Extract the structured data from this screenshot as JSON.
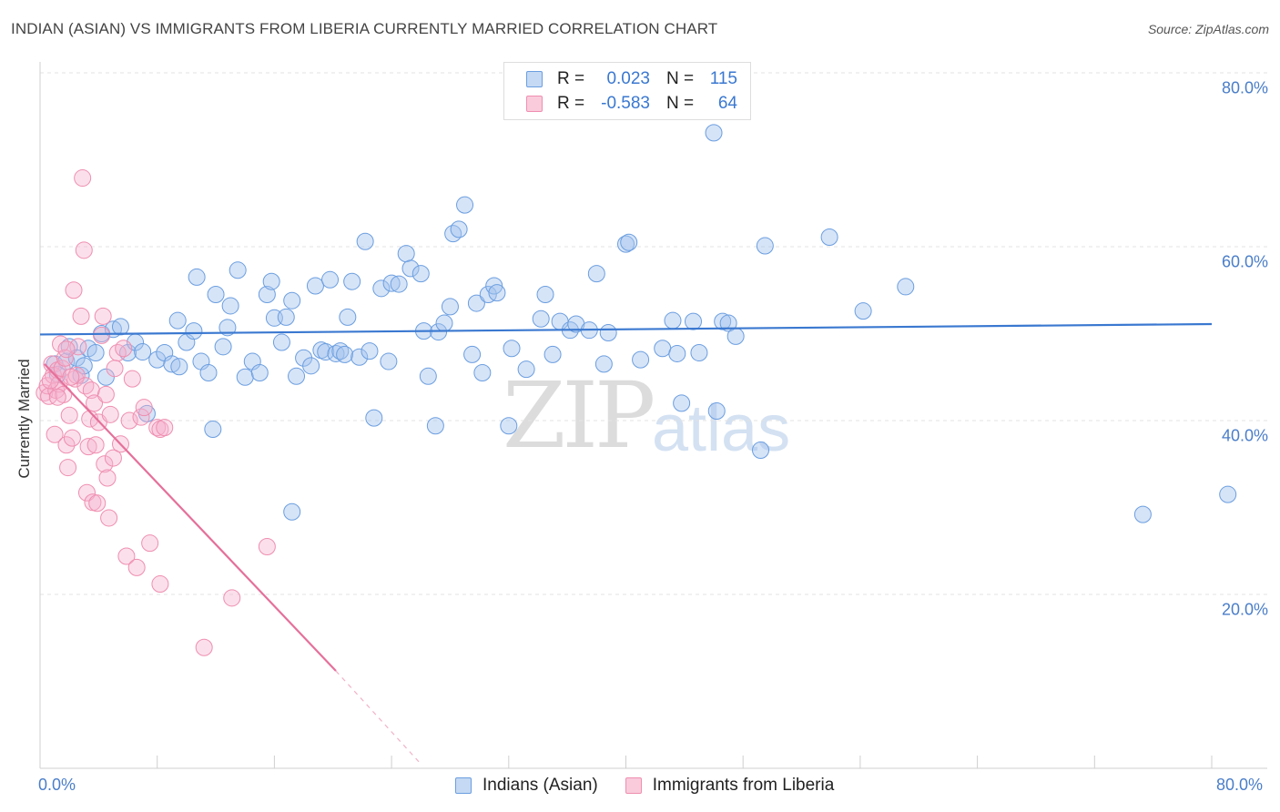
{
  "title": "INDIAN (ASIAN) VS IMMIGRANTS FROM LIBERIA CURRENTLY MARRIED CORRELATION CHART",
  "source": "Source: ZipAtlas.com",
  "watermark": {
    "zip": "ZIP",
    "atlas": "atlas"
  },
  "legend": {
    "r_label": "R =",
    "n_label": "N =",
    "rows": [
      {
        "r": "0.023",
        "n": "115"
      },
      {
        "r": "-0.583",
        "n": "64"
      }
    ]
  },
  "bottom_legend": [
    "Indians (Asian)",
    "Immigrants from Liberia"
  ],
  "chart_data": {
    "type": "scatter",
    "title": "INDIAN (ASIAN) VS IMMIGRANTS FROM LIBERIA CURRENTLY MARRIED CORRELATION CHART",
    "xlabel": "",
    "ylabel": "Currently Married",
    "xlim": [
      0,
      80
    ],
    "ylim": [
      0,
      80
    ],
    "x_tick_labels": [
      "0.0%",
      "80.0%"
    ],
    "y_tick_labels": [
      "80.0%",
      "60.0%",
      "40.0%",
      "20.0%"
    ],
    "y_ticks": [
      80,
      60,
      40,
      20
    ],
    "grid": true,
    "colors": {
      "blue": "#6b9ee0",
      "pink": "#ef8eb0",
      "blue_line": "#3a78d0",
      "pink_line": "#e5709a"
    },
    "series": [
      {
        "name": "Indians (Asian)",
        "color": "#6b9ee0",
        "trend": {
          "x": [
            0,
            80
          ],
          "y": [
            49.9,
            51.1
          ]
        },
        "points": [
          [
            1.0,
            46.5
          ],
          [
            1.2,
            45.3
          ],
          [
            1.8,
            46.8
          ],
          [
            2.0,
            48.5
          ],
          [
            2.5,
            47.2
          ],
          [
            2.8,
            45.2
          ],
          [
            3.0,
            46.3
          ],
          [
            3.3,
            48.3
          ],
          [
            3.8,
            47.8
          ],
          [
            4.2,
            50.0
          ],
          [
            4.5,
            45.0
          ],
          [
            5.0,
            50.5
          ],
          [
            5.5,
            50.8
          ],
          [
            6.0,
            47.8
          ],
          [
            6.5,
            49.0
          ],
          [
            7.0,
            47.9
          ],
          [
            7.3,
            40.8
          ],
          [
            8.0,
            47.0
          ],
          [
            8.5,
            47.8
          ],
          [
            9.0,
            46.5
          ],
          [
            9.5,
            46.2
          ],
          [
            9.4,
            51.5
          ],
          [
            10.0,
            49.0
          ],
          [
            10.5,
            50.3
          ],
          [
            10.7,
            56.5
          ],
          [
            11.0,
            46.8
          ],
          [
            11.5,
            45.5
          ],
          [
            12.0,
            54.5
          ],
          [
            12.5,
            48.5
          ],
          [
            12.8,
            50.7
          ],
          [
            13.0,
            53.2
          ],
          [
            13.5,
            57.3
          ],
          [
            14.0,
            45.0
          ],
          [
            14.5,
            46.8
          ],
          [
            15.0,
            45.5
          ],
          [
            15.5,
            54.5
          ],
          [
            15.8,
            56.0
          ],
          [
            16.0,
            51.8
          ],
          [
            16.5,
            49.0
          ],
          [
            16.8,
            51.9
          ],
          [
            17.2,
            53.8
          ],
          [
            17.5,
            45.1
          ],
          [
            18.0,
            47.2
          ],
          [
            18.5,
            46.3
          ],
          [
            18.8,
            55.5
          ],
          [
            19.2,
            48.1
          ],
          [
            19.5,
            47.9
          ],
          [
            19.8,
            56.2
          ],
          [
            20.2,
            47.7
          ],
          [
            20.5,
            48.0
          ],
          [
            20.8,
            47.6
          ],
          [
            21.0,
            51.9
          ],
          [
            21.3,
            56.0
          ],
          [
            21.8,
            47.3
          ],
          [
            22.2,
            60.6
          ],
          [
            22.5,
            48.0
          ],
          [
            22.8,
            40.3
          ],
          [
            23.3,
            55.2
          ],
          [
            23.8,
            46.8
          ],
          [
            24.0,
            55.8
          ],
          [
            24.5,
            55.7
          ],
          [
            25.0,
            59.2
          ],
          [
            25.3,
            57.5
          ],
          [
            26.0,
            56.9
          ],
          [
            26.2,
            50.3
          ],
          [
            26.5,
            45.1
          ],
          [
            27.0,
            39.4
          ],
          [
            27.2,
            50.2
          ],
          [
            27.6,
            51.2
          ],
          [
            28.0,
            53.1
          ],
          [
            28.2,
            61.5
          ],
          [
            28.6,
            62.0
          ],
          [
            29.0,
            64.8
          ],
          [
            29.5,
            47.6
          ],
          [
            29.8,
            53.5
          ],
          [
            30.2,
            45.5
          ],
          [
            30.6,
            54.5
          ],
          [
            31.0,
            55.5
          ],
          [
            31.2,
            54.7
          ],
          [
            32.0,
            39.4
          ],
          [
            32.2,
            48.3
          ],
          [
            33.2,
            45.9
          ],
          [
            34.2,
            51.7
          ],
          [
            34.5,
            54.5
          ],
          [
            35.0,
            47.6
          ],
          [
            35.5,
            51.4
          ],
          [
            36.2,
            50.4
          ],
          [
            36.6,
            51.1
          ],
          [
            37.5,
            50.4
          ],
          [
            38.0,
            56.9
          ],
          [
            38.5,
            46.5
          ],
          [
            38.8,
            50.1
          ],
          [
            40.0,
            60.3
          ],
          [
            40.2,
            60.5
          ],
          [
            41.0,
            47.0
          ],
          [
            42.5,
            48.3
          ],
          [
            43.2,
            51.5
          ],
          [
            43.5,
            47.7
          ],
          [
            43.8,
            42.0
          ],
          [
            44.6,
            51.4
          ],
          [
            45.0,
            47.8
          ],
          [
            46.6,
            51.4
          ],
          [
            47.0,
            51.2
          ],
          [
            47.5,
            49.7
          ],
          [
            49.2,
            36.6
          ],
          [
            49.5,
            60.1
          ],
          [
            53.9,
            61.1
          ],
          [
            56.2,
            52.6
          ],
          [
            59.1,
            55.4
          ],
          [
            75.3,
            29.2
          ],
          [
            81.1,
            31.5
          ],
          [
            46.0,
            73.1
          ],
          [
            17.2,
            29.5
          ],
          [
            46.2,
            41.1
          ],
          [
            11.8,
            39.0
          ]
        ]
      },
      {
        "name": "Immigrants from Liberia",
        "color": "#ef8eb0",
        "trend": {
          "x": [
            0.3,
            20.2
          ],
          "y": [
            46.5,
            11.2
          ]
        },
        "trend_dashed": {
          "x": [
            20.2,
            26.0
          ],
          "y": [
            11.2,
            0.5
          ]
        },
        "points": [
          [
            0.3,
            43.2
          ],
          [
            0.5,
            44.0
          ],
          [
            0.6,
            42.8
          ],
          [
            0.8,
            46.5
          ],
          [
            0.9,
            45.2
          ],
          [
            1.0,
            38.4
          ],
          [
            1.1,
            43.5
          ],
          [
            1.2,
            45.8
          ],
          [
            1.3,
            44.2
          ],
          [
            1.4,
            48.8
          ],
          [
            1.5,
            46.0
          ],
          [
            1.6,
            43.0
          ],
          [
            1.7,
            47.2
          ],
          [
            1.8,
            37.2
          ],
          [
            1.9,
            34.6
          ],
          [
            2.0,
            40.6
          ],
          [
            2.2,
            38.0
          ],
          [
            2.3,
            55.0
          ],
          [
            2.4,
            44.8
          ],
          [
            2.5,
            45.2
          ],
          [
            2.6,
            48.5
          ],
          [
            2.8,
            52.0
          ],
          [
            3.0,
            59.6
          ],
          [
            3.1,
            44.0
          ],
          [
            3.2,
            31.7
          ],
          [
            3.3,
            37.0
          ],
          [
            3.4,
            40.2
          ],
          [
            3.5,
            43.5
          ],
          [
            3.6,
            30.6
          ],
          [
            3.7,
            42.0
          ],
          [
            3.8,
            37.2
          ],
          [
            3.9,
            30.5
          ],
          [
            4.0,
            39.8
          ],
          [
            4.2,
            49.8
          ],
          [
            4.3,
            52.0
          ],
          [
            4.4,
            35.0
          ],
          [
            4.5,
            43.0
          ],
          [
            4.6,
            33.4
          ],
          [
            4.7,
            28.8
          ],
          [
            4.8,
            40.7
          ],
          [
            5.0,
            35.7
          ],
          [
            5.3,
            47.8
          ],
          [
            5.5,
            37.3
          ],
          [
            5.7,
            48.3
          ],
          [
            5.9,
            24.4
          ],
          [
            6.1,
            40.0
          ],
          [
            6.3,
            44.8
          ],
          [
            6.6,
            23.1
          ],
          [
            6.9,
            40.4
          ],
          [
            7.1,
            41.5
          ],
          [
            7.5,
            25.9
          ],
          [
            8.0,
            39.2
          ],
          [
            8.2,
            39.0
          ],
          [
            8.2,
            21.2
          ],
          [
            8.5,
            39.2
          ],
          [
            11.2,
            13.9
          ],
          [
            13.1,
            19.6
          ],
          [
            15.5,
            25.5
          ],
          [
            2.9,
            67.9
          ],
          [
            5.1,
            46.0
          ],
          [
            1.8,
            48.2
          ],
          [
            0.7,
            44.6
          ],
          [
            1.2,
            42.7
          ],
          [
            2.1,
            45.0
          ]
        ]
      }
    ]
  }
}
